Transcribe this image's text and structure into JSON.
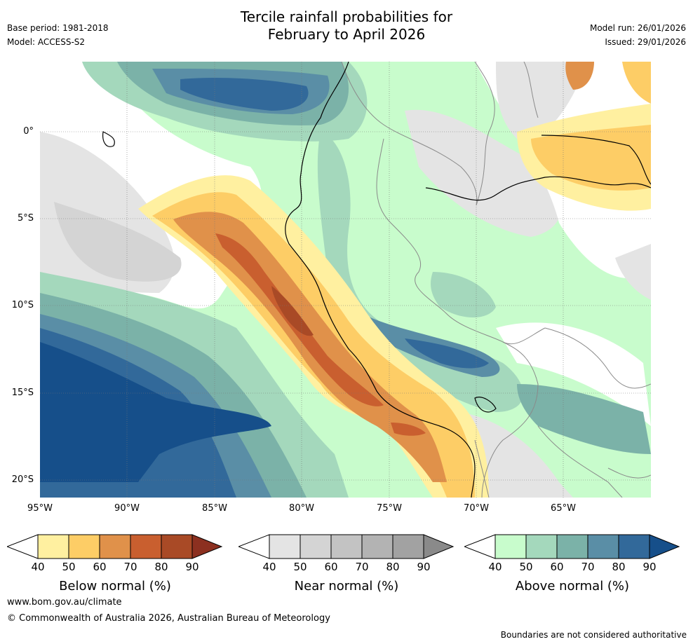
{
  "title_line1": "Tercile rainfall probabilities for",
  "title_line2": "February to April 2026",
  "meta_left": {
    "base_period": "Base period: 1981-2018",
    "model": "Model: ACCESS-S2"
  },
  "meta_right": {
    "model_run": "Model run: 26/01/2026",
    "issued": "Issued: 29/01/2026"
  },
  "map": {
    "lat_labels": [
      "0°",
      "5°S",
      "10°S",
      "15°S",
      "20°S"
    ],
    "lon_labels": [
      "95°W",
      "90°W",
      "85°W",
      "80°W",
      "75°W",
      "70°W",
      "65°W"
    ],
    "lon_range": [
      -95,
      -60
    ],
    "lat_range": [
      -21,
      4
    ]
  },
  "legends": [
    {
      "title": "Below normal (%)",
      "ticks": [
        "40",
        "50",
        "60",
        "70",
        "80",
        "90"
      ],
      "colors": [
        "#fff0a0",
        "#fdcd66",
        "#e0914a",
        "#c95f2f",
        "#a94a26",
        "#8c3020"
      ]
    },
    {
      "title": "Near normal (%)",
      "ticks": [
        "40",
        "50",
        "60",
        "70",
        "80",
        "90"
      ],
      "colors": [
        "#e4e4e4",
        "#d4d4d4",
        "#c3c3c3",
        "#b3b3b3",
        "#a2a2a2",
        "#8a8a8a"
      ]
    },
    {
      "title": "Above normal (%)",
      "ticks": [
        "40",
        "50",
        "60",
        "70",
        "80",
        "90"
      ],
      "colors": [
        "#c8fccc",
        "#a4d8bc",
        "#7bb2a8",
        "#5a8ea6",
        "#32699a",
        "#164f8a"
      ]
    }
  ],
  "footer": {
    "website": "www.bom.gov.au/climate",
    "copyright": "© Commonwealth of Australia 2026, Australian Bureau of Meteorology",
    "disclaimer": "Boundaries are not considered authoritative"
  }
}
